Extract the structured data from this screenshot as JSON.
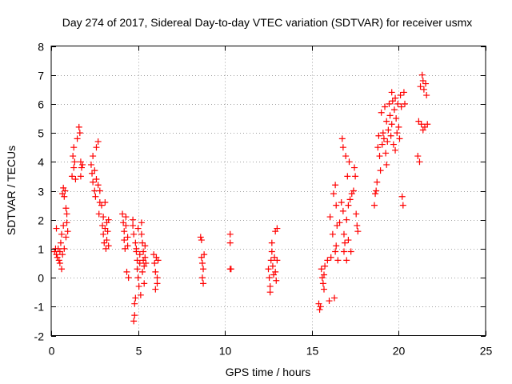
{
  "chart_data": {
    "type": "scatter",
    "title": "Day 274 of 2017, Sidereal Day-to-day VTEC variation (SDTVAR) for receiver usmx",
    "xlabel": "GPS time / hours",
    "ylabel": "SDTVAR / TECUs",
    "xlim": [
      0,
      25
    ],
    "ylim": [
      -2,
      8
    ],
    "xticks": [
      0,
      5,
      10,
      15,
      20,
      25
    ],
    "yticks": [
      -2,
      -1,
      0,
      1,
      2,
      3,
      4,
      5,
      6,
      7,
      8
    ],
    "xtick_labels": [
      "0",
      "5",
      "10",
      "15",
      "20",
      "25"
    ],
    "ytick_labels": [
      "-2",
      "-1",
      "0",
      "1",
      "2",
      "3",
      "4",
      "5",
      "6",
      "7",
      "8"
    ],
    "grid": true,
    "marker": "+",
    "color": "#ff0000",
    "series": [
      {
        "name": "SDTVAR",
        "points": [
          [
            0.2,
            0.9
          ],
          [
            0.25,
            1.0
          ],
          [
            0.3,
            0.8
          ],
          [
            0.3,
            1.7
          ],
          [
            0.35,
            0.7
          ],
          [
            0.4,
            1.0
          ],
          [
            0.45,
            0.6
          ],
          [
            0.5,
            0.5
          ],
          [
            0.5,
            0.9
          ],
          [
            0.55,
            1.2
          ],
          [
            0.6,
            0.3
          ],
          [
            0.6,
            1.5
          ],
          [
            0.65,
            2.9
          ],
          [
            0.65,
            0.8
          ],
          [
            0.7,
            3.1
          ],
          [
            0.7,
            1.8
          ],
          [
            0.75,
            2.8
          ],
          [
            0.75,
            1.0
          ],
          [
            0.8,
            3.0
          ],
          [
            0.85,
            2.4
          ],
          [
            0.85,
            1.4
          ],
          [
            0.9,
            2.2
          ],
          [
            0.9,
            1.9
          ],
          [
            0.95,
            1.6
          ],
          [
            1.2,
            3.5
          ],
          [
            1.25,
            4.2
          ],
          [
            1.3,
            4.5
          ],
          [
            1.3,
            3.8
          ],
          [
            1.35,
            4.0
          ],
          [
            1.4,
            3.4
          ],
          [
            1.5,
            4.8
          ],
          [
            1.6,
            5.2
          ],
          [
            1.65,
            5.0
          ],
          [
            1.7,
            4.0
          ],
          [
            1.7,
            3.5
          ],
          [
            1.75,
            3.8
          ],
          [
            1.8,
            3.9
          ],
          [
            2.3,
            3.9
          ],
          [
            2.35,
            3.6
          ],
          [
            2.4,
            3.3
          ],
          [
            2.4,
            4.2
          ],
          [
            2.5,
            3.7
          ],
          [
            2.5,
            3.0
          ],
          [
            2.55,
            2.8
          ],
          [
            2.6,
            4.5
          ],
          [
            2.6,
            3.4
          ],
          [
            2.7,
            4.7
          ],
          [
            2.7,
            3.2
          ],
          [
            2.75,
            2.2
          ],
          [
            2.8,
            2.6
          ],
          [
            2.8,
            3.0
          ],
          [
            2.9,
            2.5
          ],
          [
            2.95,
            1.8
          ],
          [
            3.0,
            1.5
          ],
          [
            3.0,
            2.1
          ],
          [
            3.05,
            1.2
          ],
          [
            3.1,
            2.6
          ],
          [
            3.1,
            1.7
          ],
          [
            3.15,
            1.0
          ],
          [
            3.2,
            1.9
          ],
          [
            3.2,
            1.3
          ],
          [
            3.25,
            1.6
          ],
          [
            3.3,
            1.1
          ],
          [
            3.3,
            2.0
          ],
          [
            4.1,
            2.2
          ],
          [
            4.15,
            1.9
          ],
          [
            4.2,
            1.6
          ],
          [
            4.2,
            1.3
          ],
          [
            4.25,
            1.0
          ],
          [
            4.3,
            1.8
          ],
          [
            4.3,
            2.1
          ],
          [
            4.35,
            0.2
          ],
          [
            4.4,
            1.4
          ],
          [
            4.4,
            1.1
          ],
          [
            4.45,
            0.0
          ],
          [
            4.7,
            2.0
          ],
          [
            4.7,
            1.8
          ],
          [
            4.75,
            1.5
          ],
          [
            4.75,
            -1.5
          ],
          [
            4.8,
            -1.3
          ],
          [
            4.8,
            -0.9
          ],
          [
            4.85,
            -0.7
          ],
          [
            4.85,
            1.2
          ],
          [
            4.9,
            0.9
          ],
          [
            4.9,
            1.0
          ],
          [
            4.95,
            0.6
          ],
          [
            4.95,
            0.3
          ],
          [
            5.0,
            1.7
          ],
          [
            5.0,
            0.0
          ],
          [
            5.05,
            -0.3
          ],
          [
            5.1,
            0.8
          ],
          [
            5.1,
            0.5
          ],
          [
            5.15,
            -0.6
          ],
          [
            5.2,
            1.9
          ],
          [
            5.2,
            1.5
          ],
          [
            5.25,
            1.2
          ],
          [
            5.25,
            0.2
          ],
          [
            5.3,
            0.9
          ],
          [
            5.3,
            0.6
          ],
          [
            5.35,
            0.4
          ],
          [
            5.35,
            -0.2
          ],
          [
            5.4,
            1.1
          ],
          [
            5.4,
            0.7
          ],
          [
            5.45,
            0.5
          ],
          [
            5.9,
            0.8
          ],
          [
            5.95,
            0.5
          ],
          [
            6.0,
            0.2
          ],
          [
            6.0,
            -0.4
          ],
          [
            6.05,
            0.7
          ],
          [
            6.1,
            -0.2
          ],
          [
            6.1,
            0.0
          ],
          [
            6.15,
            0.6
          ],
          [
            8.6,
            1.4
          ],
          [
            8.65,
            1.3
          ],
          [
            8.65,
            0.7
          ],
          [
            8.7,
            0.5
          ],
          [
            8.7,
            0.0
          ],
          [
            8.75,
            -0.2
          ],
          [
            8.75,
            0.3
          ],
          [
            8.8,
            0.8
          ],
          [
            10.3,
            1.5
          ],
          [
            10.3,
            1.2
          ],
          [
            10.3,
            0.3
          ],
          [
            10.35,
            0.3
          ],
          [
            12.5,
            0.3
          ],
          [
            12.55,
            0.0
          ],
          [
            12.6,
            -0.3
          ],
          [
            12.6,
            -0.5
          ],
          [
            12.65,
            0.6
          ],
          [
            12.7,
            1.2
          ],
          [
            12.7,
            0.9
          ],
          [
            12.75,
            0.4
          ],
          [
            12.8,
            0.1
          ],
          [
            12.85,
            0.7
          ],
          [
            12.9,
            1.6
          ],
          [
            12.9,
            0.2
          ],
          [
            12.95,
            -0.1
          ],
          [
            13.0,
            1.7
          ],
          [
            13.0,
            0.6
          ],
          [
            15.4,
            -0.9
          ],
          [
            15.45,
            -1.1
          ],
          [
            15.5,
            -1.0
          ],
          [
            15.55,
            0.3
          ],
          [
            15.6,
            0.0
          ],
          [
            15.65,
            -0.2
          ],
          [
            15.7,
            0.1
          ],
          [
            15.7,
            -0.4
          ],
          [
            15.75,
            0.4
          ],
          [
            15.9,
            0.6
          ],
          [
            16.0,
            -0.8
          ],
          [
            16.05,
            2.1
          ],
          [
            16.1,
            0.7
          ],
          [
            16.2,
            1.5
          ],
          [
            16.25,
            2.9
          ],
          [
            16.3,
            -0.7
          ],
          [
            16.35,
            3.2
          ],
          [
            16.35,
            0.9
          ],
          [
            16.4,
            2.5
          ],
          [
            16.4,
            1.1
          ],
          [
            16.45,
            1.8
          ],
          [
            16.5,
            0.6
          ],
          [
            16.6,
            1.9
          ],
          [
            16.7,
            2.6
          ],
          [
            16.75,
            4.8
          ],
          [
            16.8,
            4.5
          ],
          [
            16.8,
            2.3
          ],
          [
            16.85,
            1.5
          ],
          [
            16.85,
            0.9
          ],
          [
            16.9,
            1.2
          ],
          [
            16.95,
            4.2
          ],
          [
            17.0,
            2.0
          ],
          [
            17.0,
            0.6
          ],
          [
            17.05,
            3.5
          ],
          [
            17.1,
            2.5
          ],
          [
            17.1,
            1.3
          ],
          [
            17.15,
            4.0
          ],
          [
            17.2,
            2.7
          ],
          [
            17.25,
            0.9
          ],
          [
            17.3,
            2.9
          ],
          [
            17.4,
            3.0
          ],
          [
            17.45,
            3.8
          ],
          [
            17.5,
            3.5
          ],
          [
            17.55,
            2.2
          ],
          [
            17.6,
            1.8
          ],
          [
            17.65,
            1.6
          ],
          [
            18.6,
            2.5
          ],
          [
            18.65,
            2.9
          ],
          [
            18.7,
            3.0
          ],
          [
            18.75,
            3.3
          ],
          [
            18.8,
            4.5
          ],
          [
            18.85,
            4.9
          ],
          [
            18.9,
            4.2
          ],
          [
            18.95,
            3.7
          ],
          [
            19.0,
            5.7
          ],
          [
            19.05,
            4.6
          ],
          [
            19.1,
            5.0
          ],
          [
            19.15,
            4.8
          ],
          [
            19.2,
            5.9
          ],
          [
            19.25,
            4.3
          ],
          [
            19.3,
            5.4
          ],
          [
            19.3,
            3.9
          ],
          [
            19.35,
            4.7
          ],
          [
            19.4,
            5.1
          ],
          [
            19.45,
            6.0
          ],
          [
            19.5,
            5.6
          ],
          [
            19.55,
            4.9
          ],
          [
            19.6,
            6.4
          ],
          [
            19.6,
            5.3
          ],
          [
            19.65,
            6.1
          ],
          [
            19.7,
            4.6
          ],
          [
            19.75,
            5.8
          ],
          [
            19.8,
            6.2
          ],
          [
            19.8,
            4.4
          ],
          [
            19.85,
            5.5
          ],
          [
            19.9,
            5.0
          ],
          [
            19.95,
            6.0
          ],
          [
            20.0,
            5.2
          ],
          [
            20.05,
            4.8
          ],
          [
            20.1,
            6.3
          ],
          [
            20.15,
            5.9
          ],
          [
            20.2,
            2.8
          ],
          [
            20.25,
            2.5
          ],
          [
            20.3,
            6.4
          ],
          [
            20.35,
            6.0
          ],
          [
            21.1,
            4.2
          ],
          [
            21.15,
            5.4
          ],
          [
            21.2,
            4.0
          ],
          [
            21.25,
            6.6
          ],
          [
            21.3,
            5.3
          ],
          [
            21.35,
            7.0
          ],
          [
            21.4,
            6.8
          ],
          [
            21.4,
            5.1
          ],
          [
            21.45,
            6.5
          ],
          [
            21.5,
            5.2
          ],
          [
            21.55,
            6.7
          ],
          [
            21.6,
            6.3
          ],
          [
            21.65,
            5.3
          ]
        ]
      }
    ]
  }
}
